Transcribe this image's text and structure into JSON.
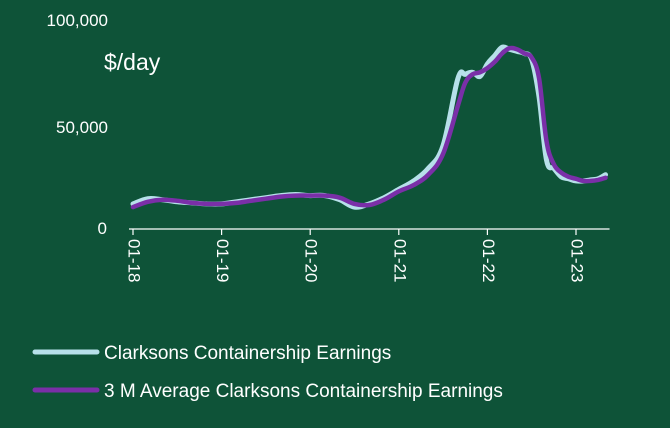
{
  "chart_data": {
    "type": "line",
    "ylabel": "$/day",
    "ylim": [
      0,
      100000
    ],
    "y_ticks": [
      "0",
      "50,000",
      "100,000"
    ],
    "x_tick_labels": [
      "01-18",
      "01-19",
      "01-20",
      "01-21",
      "01-22",
      "01-23"
    ],
    "x_range": [
      "01-18",
      "05-23"
    ],
    "grid": false,
    "legend_position": "bottom",
    "colors": {
      "background": "#0e5338",
      "axis": "#ffffff"
    },
    "series": [
      {
        "name": "Clarksons Containership Earnings",
        "color": "#b7e0ea",
        "x": [
          "01-18",
          "03-18",
          "05-18",
          "07-18",
          "09-18",
          "11-18",
          "01-19",
          "03-19",
          "05-19",
          "07-19",
          "09-19",
          "11-19",
          "01-20",
          "03-20",
          "05-20",
          "07-20",
          "09-20",
          "11-20",
          "01-21",
          "03-21",
          "05-21",
          "07-21",
          "09-21",
          "10-21",
          "11-21",
          "12-21",
          "01-22",
          "02-22",
          "03-22",
          "04-22",
          "05-22",
          "06-22",
          "07-22",
          "08-22",
          "09-22",
          "10-22",
          "11-22",
          "12-22",
          "01-23",
          "02-23",
          "03-23",
          "04-23",
          "05-23"
        ],
        "values": [
          12000,
          14500,
          14000,
          13000,
          12500,
          12000,
          12000,
          13000,
          14000,
          15000,
          16000,
          16500,
          16000,
          16000,
          14000,
          10500,
          12000,
          15000,
          19000,
          23000,
          29000,
          40000,
          72000,
          74000,
          75000,
          73000,
          79000,
          83000,
          87000,
          86000,
          85000,
          84000,
          81000,
          63000,
          33000,
          29000,
          25000,
          24000,
          23000,
          23000,
          23500,
          24000,
          26000
        ]
      },
      {
        "name": "3 M Average Clarksons Containership Earnings",
        "color": "#7a2fa8",
        "x": [
          "01-18",
          "03-18",
          "05-18",
          "07-18",
          "09-18",
          "11-18",
          "01-19",
          "03-19",
          "05-19",
          "07-19",
          "09-19",
          "11-19",
          "01-20",
          "03-20",
          "05-20",
          "07-20",
          "09-20",
          "11-20",
          "01-21",
          "03-21",
          "05-21",
          "07-21",
          "09-21",
          "10-21",
          "11-21",
          "12-21",
          "01-22",
          "02-22",
          "03-22",
          "04-22",
          "05-22",
          "06-22",
          "07-22",
          "08-22",
          "09-22",
          "10-22",
          "11-22",
          "12-22",
          "01-23",
          "02-23",
          "03-23",
          "04-23",
          "05-23"
        ],
        "values": [
          10500,
          13000,
          14000,
          13500,
          12500,
          12000,
          12000,
          12500,
          13500,
          14500,
          15500,
          16000,
          16000,
          16000,
          15000,
          12000,
          11500,
          14000,
          18000,
          21000,
          26000,
          36000,
          59000,
          70000,
          74000,
          75000,
          77000,
          80000,
          84000,
          86500,
          86000,
          84000,
          82000,
          72000,
          42000,
          31000,
          27000,
          25000,
          24000,
          23000,
          23000,
          23500,
          24500
        ]
      }
    ]
  }
}
